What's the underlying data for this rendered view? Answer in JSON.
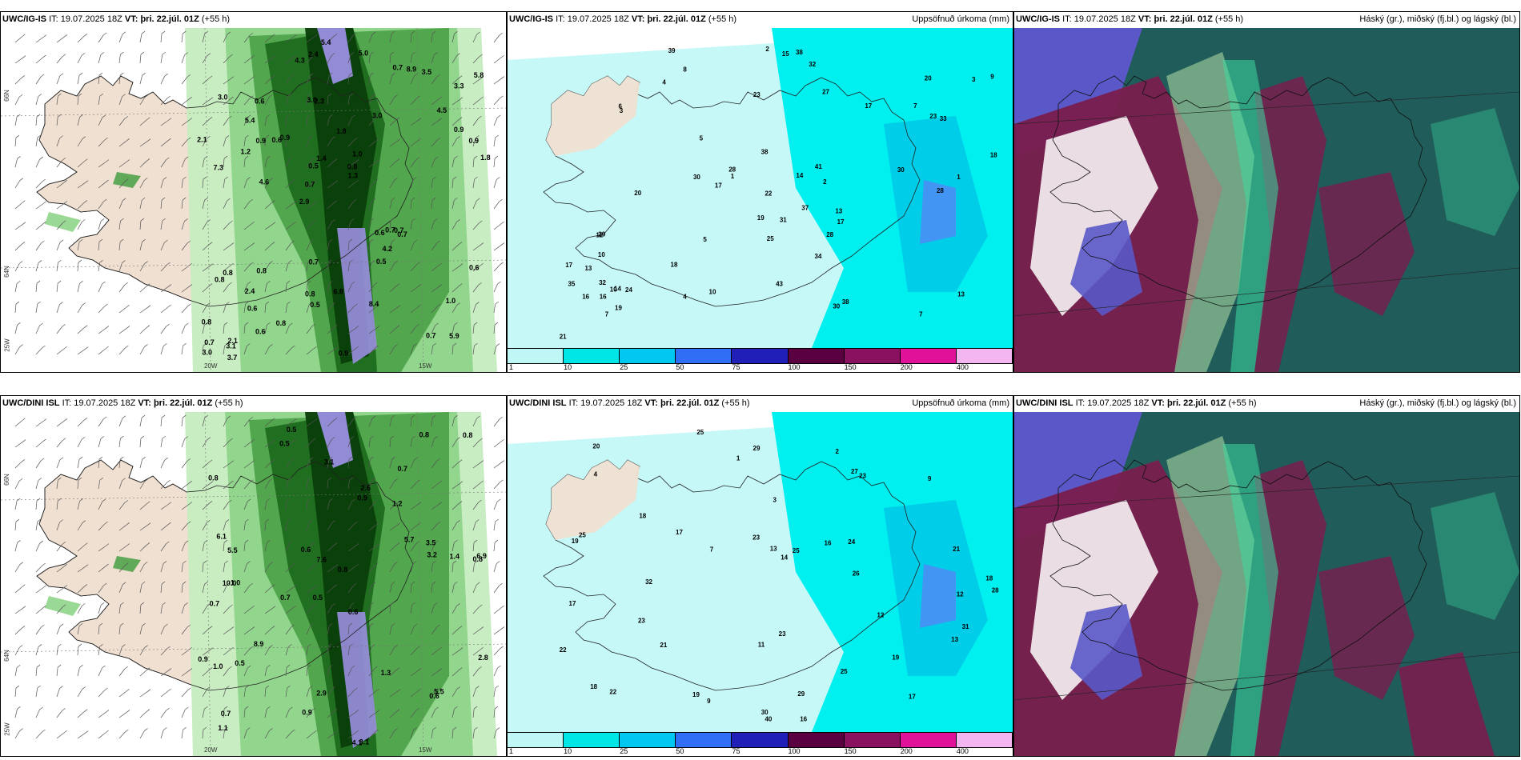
{
  "panels": {
    "tl": {
      "model": "UWC/IG-IS",
      "it_label": "IT:",
      "it": "19.07.2025 18Z",
      "vt_label": "VT:",
      "vt": "þri. 22.júl. 01Z",
      "lead": "(+55 h)",
      "right": ""
    },
    "tm": {
      "model": "UWC/IG-IS",
      "it_label": "IT:",
      "it": "19.07.2025 18Z",
      "vt_label": "VT:",
      "vt": "þri. 22.júl. 01Z",
      "lead": "(+55 h)",
      "right": "Uppsöfnuð úrkoma (mm)"
    },
    "tr": {
      "model": "UWC/IG-IS",
      "it_label": "IT:",
      "it": "19.07.2025 18Z",
      "vt_label": "VT:",
      "vt": "þri. 22.júl. 01Z",
      "lead": "(+55 h)",
      "right": "Háský (gr.), miðský (fj.bl.) og lágský (bl.)"
    },
    "bl": {
      "model": "UWC/DINI ISL",
      "it_label": "IT:",
      "it": "19.07.2025 18Z",
      "vt_label": "VT:",
      "vt": "þri. 22.júl. 01Z",
      "lead": "(+55 h)",
      "right": ""
    },
    "bm": {
      "model": "UWC/DINI ISL",
      "it_label": "IT:",
      "it": "19.07.2025 18Z",
      "vt_label": "VT:",
      "vt": "þri. 22.júl. 01Z",
      "lead": "(+55 h)",
      "right": "Uppsöfnuð úrkoma (mm)"
    },
    "br": {
      "model": "UWC/DINI ISL",
      "it_label": "IT:",
      "it": "19.07.2025 18Z",
      "vt_label": "VT:",
      "vt": "þri. 22.júl. 01Z",
      "lead": "(+55 h)",
      "right": "Háský (gr.), miðský (fj.bl.) og lágský (bl.)"
    }
  },
  "axes": {
    "lat_66": "66N",
    "lat_64": "64N",
    "lon_25": "25W",
    "lon_20": "20W",
    "lon_15": "15W"
  },
  "legend": {
    "labels": [
      "1",
      "10",
      "25",
      "50",
      "75",
      "100",
      "150",
      "200",
      "400"
    ],
    "colors": [
      "#bff7f7",
      "#00e6e6",
      "#00c8f0",
      "#2f6ef5",
      "#2020b8",
      "#5a0040",
      "#8a1060",
      "#e0129a",
      "#f4b6f0"
    ]
  },
  "precip_tl": [
    "5.9",
    "7.3",
    "3.3",
    "2.9",
    "3.0",
    "2.1",
    "3.0",
    "1.8",
    "0.8",
    "0.9",
    "0.8",
    "0.6",
    "2.3",
    "1.0",
    "0.7",
    "3.0",
    "2.4",
    "1.8",
    "0.6",
    "0.9",
    "0.7",
    "0.8",
    "0.5",
    "0.6",
    "0.7",
    "0.8",
    "0.7",
    "1.0",
    "0.7",
    "0.9",
    "0.6",
    "1.2",
    "0.5",
    "0.6",
    "0.9",
    "0.8",
    "0.7",
    "0.5",
    "1.3",
    "0.8",
    "4.5",
    "5.8",
    "4.2",
    "8.4",
    "2.4",
    "3.7",
    "3.0",
    "6.8",
    "3.5",
    "5.4",
    "4.6",
    "2.1",
    "5.4",
    "8.9",
    "3.1",
    "5.0",
    "4.3",
    "1.4",
    "0.6",
    "0.7",
    "0.8",
    "0.7",
    "0.9"
  ],
  "precip_bl": [
    "0.5",
    "0.7",
    "0.8",
    "0.5",
    "0.6",
    "1.0",
    "0.8",
    "1.2",
    "0.7",
    "0.9",
    "0.8",
    "1.1",
    "0.5",
    "0.7",
    "4.1",
    "3.1",
    "2.9",
    "0.8",
    "5.7",
    "8.9",
    "5.5",
    "10.0",
    "6.9",
    "1.4",
    "0.9",
    "6.1",
    "7.6",
    "3.2",
    "5.5",
    "1.0",
    "0.6",
    "2.6",
    "0.5",
    "0.6",
    "1.3",
    "2.8",
    "3.5",
    "0.9",
    "0.8",
    "3.1",
    "0.7"
  ],
  "accum_top": [
    "4",
    "1",
    "1",
    "7",
    "10",
    "3",
    "2",
    "4",
    "5",
    "3",
    "7",
    "8",
    "6",
    "9",
    "10",
    "32",
    "19",
    "23",
    "38",
    "30",
    "29",
    "28",
    "30",
    "38",
    "19",
    "13",
    "18",
    "16",
    "17",
    "20",
    "37",
    "25",
    "43",
    "39",
    "34",
    "27",
    "31",
    "21",
    "22",
    "17",
    "32",
    "23",
    "18",
    "20",
    "28",
    "33",
    "41",
    "35",
    "13",
    "38",
    "30",
    "28",
    "17",
    "17",
    "14",
    "13",
    "15",
    "14",
    "16",
    "12",
    "24",
    "10",
    "7",
    "5",
    "2"
  ],
  "accum_bot": [
    "2",
    "1",
    "13",
    "22",
    "11",
    "9",
    "12",
    "17",
    "18",
    "20",
    "18",
    "17",
    "23",
    "29",
    "25",
    "22",
    "26",
    "31",
    "30",
    "21",
    "23",
    "17",
    "16",
    "25",
    "29",
    "28",
    "24",
    "19",
    "14",
    "13",
    "25",
    "40",
    "27",
    "23",
    "32",
    "25",
    "18",
    "19",
    "23",
    "21",
    "19",
    "16",
    "9",
    "7",
    "12",
    "4",
    "3"
  ],
  "colors": {
    "land": "#f0e0d2",
    "green1": "#c6ecc0",
    "green2": "#8fd58a",
    "green3": "#4fa34a",
    "green4": "#1d6b1d",
    "green5": "#0a3d0a",
    "violet": "#9a8fe0",
    "c1": "#c6f8f8",
    "c2": "#00f0f0",
    "c3": "#00cde8",
    "c4": "#4a8ff5",
    "cloudHigh": "#1f5c5a",
    "cloudMid": "#7a1d4e",
    "cloudLow": "#5a58c8",
    "cloudNew": "#3ddba0"
  }
}
